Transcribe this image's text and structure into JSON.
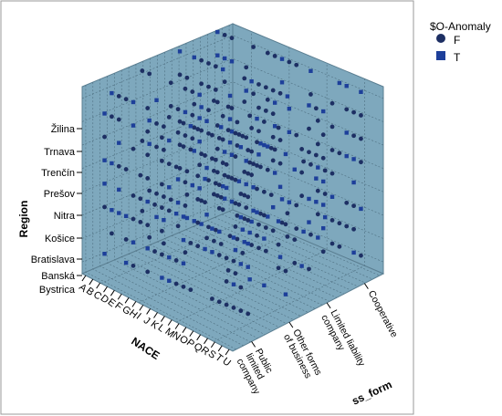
{
  "chart_data": {
    "type": "scatter",
    "subtype": "3d-scatter",
    "axes": {
      "x": {
        "label": "NACE",
        "ticks": [
          "A",
          "B",
          "C",
          "D",
          "E",
          "F",
          "G",
          "H",
          "I",
          "J",
          "K",
          "L",
          "M",
          "N",
          "O",
          "P",
          "Q",
          "R",
          "S",
          "T",
          "U"
        ]
      },
      "y": {
        "label": "Region",
        "ticks": [
          "Banská Bystrica",
          "Bratislava",
          "Košice",
          "Nitra",
          "Prešov",
          "Trenčín",
          "Trnava",
          "Žilina"
        ]
      },
      "z": {
        "label": "Business_form",
        "ticks": [
          "Public limited company",
          "Other forms of business",
          "Limited liability company",
          "Cooperative"
        ]
      }
    },
    "legend": {
      "title": "$O-Anomaly",
      "position": "top-right",
      "entries": [
        {
          "name": "F",
          "marker": "circle",
          "color": "#1d2f63"
        },
        {
          "name": "T",
          "marker": "square",
          "color": "#1d3f9a"
        }
      ]
    },
    "grid": true,
    "panel_color": "#7ea8bd",
    "marker_color_f": "#1d2f63",
    "marker_color_t": "#1d3f9a"
  },
  "labels": {
    "region_ticks": [
      "Žilina",
      "Trnava",
      "Trenčín",
      "Prešov",
      "Nitra",
      "Košice",
      "Bratislava",
      "Banská",
      "Bystrica"
    ],
    "nace_ticks": [
      "A",
      "B",
      "C",
      "D",
      "E",
      "F",
      "G",
      "H",
      "I",
      "J",
      "K",
      "L",
      "M",
      "N",
      "O",
      "P",
      "Q",
      "R",
      "S",
      "T",
      "U"
    ],
    "bf_tick_lines": [
      [
        "Public",
        "limited",
        "company"
      ],
      [
        "Other forms",
        "of business"
      ],
      [
        "Limited liability",
        "company"
      ],
      [
        "Cooperative"
      ]
    ],
    "region_axis": "Region",
    "nace_axis": "NACE",
    "bf_axis": "ss_form"
  }
}
